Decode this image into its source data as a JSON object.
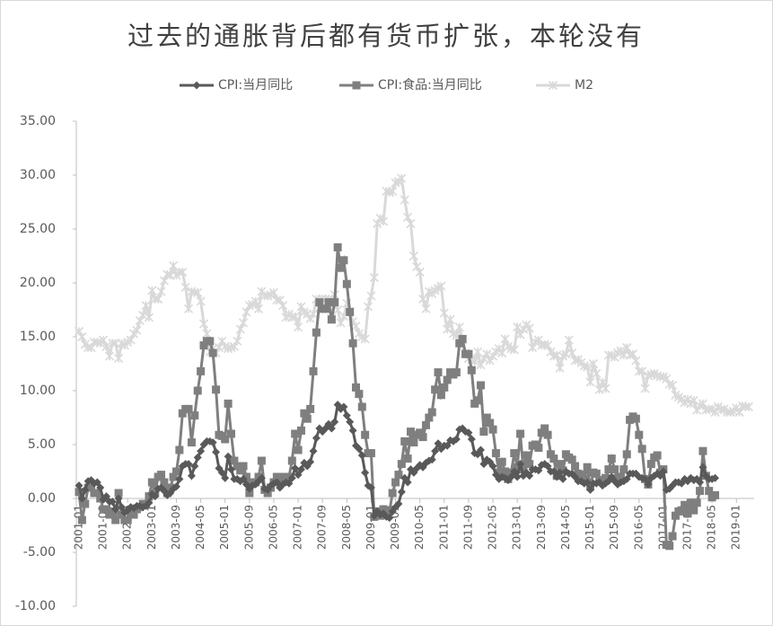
{
  "chart_data": {
    "type": "line",
    "title": "过去的通胀背后都有货币扩张，本轮没有",
    "ylim": [
      -10,
      35
    ],
    "yticks": [
      {
        "value": -10,
        "label": "-10.00"
      },
      {
        "value": -5,
        "label": "-5.00"
      },
      {
        "value": 0,
        "label": "0.00"
      },
      {
        "value": 5,
        "label": "5.00"
      },
      {
        "value": 10,
        "label": "10.00"
      },
      {
        "value": 15,
        "label": "15.00"
      },
      {
        "value": 20,
        "label": "20.00"
      },
      {
        "value": 25,
        "label": "25.00"
      },
      {
        "value": 30,
        "label": "30.00"
      },
      {
        "value": 35,
        "label": "35.00"
      }
    ],
    "legend": "top",
    "categories": [
      "2001-01",
      null,
      null,
      null,
      null,
      null,
      null,
      null,
      "2001-09",
      null,
      null,
      null,
      null,
      null,
      null,
      null,
      "2002-05",
      null,
      null,
      null,
      null,
      null,
      null,
      null,
      "2003-01",
      null,
      null,
      null,
      null,
      null,
      null,
      null,
      "2003-09",
      null,
      null,
      null,
      null,
      null,
      null,
      null,
      "2004-05",
      null,
      null,
      null,
      null,
      null,
      null,
      null,
      "2005-01",
      null,
      null,
      null,
      null,
      null,
      null,
      null,
      "2005-09",
      null,
      null,
      null,
      null,
      null,
      null,
      null,
      "2006-05",
      null,
      null,
      null,
      null,
      null,
      null,
      null,
      "2007-01",
      null,
      null,
      null,
      null,
      null,
      null,
      null,
      "2007-09",
      null,
      null,
      null,
      null,
      null,
      null,
      null,
      "2008-05",
      null,
      null,
      null,
      null,
      null,
      null,
      null,
      "2009-01",
      null,
      null,
      null,
      null,
      null,
      null,
      null,
      "2009-09",
      null,
      null,
      null,
      null,
      null,
      null,
      null,
      "2010-05",
      null,
      null,
      null,
      null,
      null,
      null,
      null,
      "2011-01",
      null,
      null,
      null,
      null,
      null,
      null,
      null,
      "2011-09",
      null,
      null,
      null,
      null,
      null,
      null,
      null,
      "2012-05",
      null,
      null,
      null,
      null,
      null,
      null,
      null,
      "2013-01",
      null,
      null,
      null,
      null,
      null,
      null,
      null,
      "2013-09",
      null,
      null,
      null,
      null,
      null,
      null,
      null,
      "2014-05",
      null,
      null,
      null,
      null,
      null,
      null,
      null,
      "2015-01",
      null,
      null,
      null,
      null,
      null,
      null,
      null,
      "2015-09",
      null,
      null,
      null,
      null,
      null,
      null,
      null,
      "2016-05",
      null,
      null,
      null,
      null,
      null,
      null,
      null,
      "2017-01",
      null,
      null,
      null,
      null,
      null,
      null,
      null,
      "2017-09",
      null,
      null,
      null,
      null,
      null,
      null,
      null,
      "2018-05",
      null,
      null,
      null,
      null,
      null,
      null,
      null,
      "2019-01",
      null,
      null,
      null,
      null
    ],
    "series": [
      {
        "name": "CPI:当月同比",
        "color": "#595959",
        "marker": "diamond",
        "values": [
          1.2,
          0.0,
          0.8,
          1.6,
          1.7,
          1.4,
          1.5,
          1.0,
          -0.1,
          0.2,
          -0.3,
          -0.3,
          -1.0,
          0.0,
          -0.8,
          -1.3,
          -1.1,
          -0.8,
          -0.9,
          -0.7,
          -0.7,
          -0.8,
          -0.7,
          -0.4,
          0.4,
          0.2,
          0.9,
          1.0,
          0.7,
          0.3,
          0.5,
          0.9,
          1.1,
          1.8,
          3.0,
          3.2,
          3.2,
          2.1,
          3.0,
          3.8,
          4.4,
          5.0,
          5.3,
          5.3,
          5.2,
          4.3,
          2.8,
          2.4,
          1.9,
          3.9,
          2.7,
          1.8,
          1.8,
          1.6,
          1.8,
          1.3,
          0.9,
          1.2,
          1.3,
          1.6,
          1.9,
          0.9,
          0.8,
          1.2,
          1.4,
          1.5,
          1.0,
          1.3,
          1.5,
          1.4,
          1.9,
          2.8,
          2.2,
          2.7,
          3.3,
          3.0,
          3.4,
          4.4,
          5.6,
          6.5,
          6.2,
          6.5,
          6.9,
          6.5,
          7.1,
          8.7,
          8.3,
          8.5,
          7.7,
          7.1,
          6.3,
          4.9,
          4.6,
          4.0,
          2.4,
          1.2,
          1.0,
          -1.6,
          -1.2,
          -1.5,
          -1.4,
          -1.7,
          -1.8,
          -1.2,
          -0.8,
          -0.5,
          0.6,
          1.9,
          1.5,
          2.7,
          2.4,
          2.8,
          3.1,
          2.9,
          3.3,
          3.5,
          3.6,
          4.4,
          5.1,
          4.6,
          4.9,
          4.9,
          5.4,
          5.3,
          5.5,
          6.4,
          6.5,
          6.2,
          6.1,
          5.5,
          4.2,
          4.1,
          4.5,
          3.2,
          3.6,
          3.4,
          3.0,
          2.2,
          1.8,
          2.0,
          1.9,
          1.7,
          2.0,
          2.5,
          2.0,
          3.2,
          2.1,
          2.4,
          2.1,
          2.7,
          2.7,
          2.6,
          3.1,
          3.2,
          3.0,
          2.5,
          2.5,
          2.0,
          2.4,
          1.8,
          2.5,
          2.3,
          2.3,
          2.0,
          1.6,
          1.6,
          1.4,
          1.5,
          0.8,
          1.4,
          1.4,
          1.5,
          1.2,
          1.4,
          1.6,
          2.0,
          1.6,
          1.3,
          1.5,
          1.6,
          1.8,
          2.3,
          2.3,
          2.3,
          2.0,
          1.9,
          1.8,
          1.3,
          1.9,
          2.1,
          2.3,
          2.1,
          2.5,
          0.8,
          0.9,
          1.2,
          1.5,
          1.5,
          1.4,
          1.8,
          1.6,
          1.9,
          1.7,
          1.8,
          1.5,
          2.9,
          2.1,
          1.8,
          1.8,
          1.9,
          null,
          null,
          null,
          null,
          null,
          null,
          null,
          null,
          null,
          null,
          null
        ]
      },
      {
        "name": "CPI:食品:当月同比",
        "color": "#7f7f7f",
        "marker": "square",
        "values": [
          0.6,
          -2.0,
          -0.5,
          1.0,
          1.0,
          0.5,
          0.5,
          0.0,
          -1.0,
          -1.0,
          -1.5,
          -1.2,
          -2.0,
          0.5,
          -1.5,
          -2.0,
          -2.0,
          -1.5,
          -1.5,
          -1.0,
          -0.8,
          -0.5,
          -0.5,
          0.2,
          1.5,
          0.5,
          2.0,
          2.2,
          1.5,
          0.5,
          1.0,
          2.0,
          2.5,
          4.5,
          7.9,
          8.3,
          8.3,
          5.2,
          7.7,
          10.0,
          11.8,
          14.2,
          14.6,
          14.6,
          13.5,
          10.1,
          5.9,
          5.8,
          5.5,
          8.8,
          6.0,
          3.5,
          3.0,
          2.6,
          3.0,
          2.0,
          0.5,
          1.5,
          1.5,
          2.0,
          3.5,
          0.8,
          0.5,
          1.0,
          1.5,
          2.0,
          1.5,
          2.0,
          2.0,
          2.0,
          3.5,
          6.0,
          4.5,
          6.3,
          7.9,
          7.4,
          8.3,
          11.8,
          15.4,
          18.2,
          17.6,
          17.6,
          18.2,
          16.6,
          18.2,
          23.3,
          21.4,
          22.1,
          19.9,
          17.3,
          14.4,
          10.3,
          9.7,
          8.5,
          5.9,
          4.2,
          4.2,
          -1.7,
          -1.2,
          -1.6,
          -1.0,
          -1.1,
          -1.2,
          0.5,
          1.5,
          2.2,
          3.2,
          5.3,
          3.7,
          6.2,
          5.2,
          5.9,
          6.1,
          5.7,
          6.8,
          7.5,
          8.0,
          10.1,
          11.7,
          9.6,
          10.3,
          11.0,
          11.7,
          11.5,
          11.7,
          14.4,
          14.8,
          13.4,
          13.4,
          11.9,
          8.8,
          9.1,
          10.5,
          6.2,
          7.5,
          7.0,
          6.4,
          4.2,
          2.4,
          3.4,
          2.5,
          1.8,
          2.4,
          4.2,
          2.9,
          6.0,
          2.7,
          4.0,
          3.2,
          4.9,
          5.0,
          4.7,
          6.1,
          6.5,
          5.9,
          4.1,
          3.7,
          2.1,
          3.2,
          2.6,
          4.1,
          3.8,
          3.6,
          3.0,
          2.3,
          2.2,
          1.8,
          2.9,
          1.1,
          2.4,
          2.3,
          1.7,
          1.6,
          1.9,
          2.7,
          3.7,
          2.7,
          1.9,
          2.0,
          2.7,
          4.1,
          7.3,
          7.6,
          7.4,
          5.9,
          4.6,
          1.8,
          1.3,
          3.2,
          3.8,
          4.0,
          2.4,
          2.7,
          -4.3,
          -4.4,
          -3.5,
          -1.6,
          -1.2,
          -1.1,
          -0.6,
          -1.4,
          -0.4,
          -1.1,
          -0.4,
          0.7,
          4.4,
          2.1,
          0.7,
          0.1,
          0.3,
          null,
          null,
          null,
          null,
          null,
          null,
          null,
          null,
          null,
          null,
          null
        ]
      },
      {
        "name": "M2",
        "color": "#d9d9d9",
        "marker": "star",
        "values": [
          15.5,
          15.0,
          14.3,
          14.0,
          14.0,
          14.5,
          14.5,
          14.4,
          14.7,
          14.1,
          13.2,
          14.4,
          14.4,
          13.0,
          14.4,
          14.2,
          14.5,
          14.7,
          15.3,
          15.6,
          16.5,
          17.0,
          17.9,
          16.8,
          19.3,
          18.5,
          18.5,
          19.2,
          20.2,
          20.8,
          20.7,
          21.6,
          20.7,
          21.0,
          21.0,
          19.6,
          17.6,
          19.2,
          19.1,
          19.1,
          18.3,
          16.2,
          15.3,
          13.6,
          13.9,
          13.5,
          14.0,
          14.6,
          14.1,
          13.9,
          14.0,
          14.1,
          14.6,
          15.7,
          16.3,
          17.3,
          17.9,
          18.0,
          18.3,
          17.6,
          19.2,
          18.8,
          18.8,
          18.9,
          19.1,
          18.4,
          18.4,
          17.9,
          16.8,
          17.1,
          16.8,
          16.9,
          15.9,
          17.8,
          17.3,
          17.1,
          16.7,
          17.1,
          18.5,
          18.1,
          18.5,
          18.5,
          18.5,
          16.7,
          18.9,
          17.5,
          16.3,
          16.9,
          18.1,
          17.4,
          16.4,
          16.0,
          15.3,
          15.0,
          14.8,
          17.8,
          18.8,
          20.5,
          25.5,
          26.0,
          25.7,
          28.5,
          28.4,
          28.5,
          29.3,
          29.4,
          29.7,
          27.7,
          26.1,
          25.5,
          22.5,
          21.5,
          21.0,
          18.5,
          17.6,
          19.2,
          19.0,
          19.3,
          19.5,
          19.7,
          17.2,
          15.7,
          16.6,
          15.3,
          15.1,
          15.9,
          14.7,
          13.5,
          13.0,
          12.9,
          12.7,
          13.6,
          12.4,
          13.0,
          13.4,
          12.8,
          13.2,
          13.6,
          13.9,
          13.5,
          14.8,
          14.1,
          13.9,
          13.8,
          15.9,
          15.2,
          15.7,
          16.1,
          15.8,
          14.0,
          14.5,
          14.7,
          14.2,
          14.3,
          14.2,
          13.6,
          13.2,
          13.3,
          12.1,
          13.2,
          13.4,
          14.7,
          13.5,
          12.8,
          12.9,
          12.6,
          12.3,
          12.2,
          10.8,
          12.5,
          11.6,
          10.1,
          10.8,
          10.2,
          13.3,
          13.3,
          13.1,
          13.5,
          13.7,
          13.3,
          14.0,
          13.3,
          13.4,
          12.8,
          11.8,
          11.8,
          10.2,
          11.4,
          11.5,
          11.6,
          11.4,
          11.3,
          11.3,
          11.1,
          10.6,
          10.5,
          9.6,
          9.4,
          9.2,
          8.9,
          9.2,
          8.8,
          9.1,
          8.2,
          8.6,
          8.8,
          8.2,
          8.3,
          8.3,
          8.0,
          8.5,
          8.2,
          8.3,
          8.0,
          8.0,
          8.1,
          8.4,
          8.0,
          8.6,
          8.5,
          8.5
        ]
      }
    ]
  }
}
